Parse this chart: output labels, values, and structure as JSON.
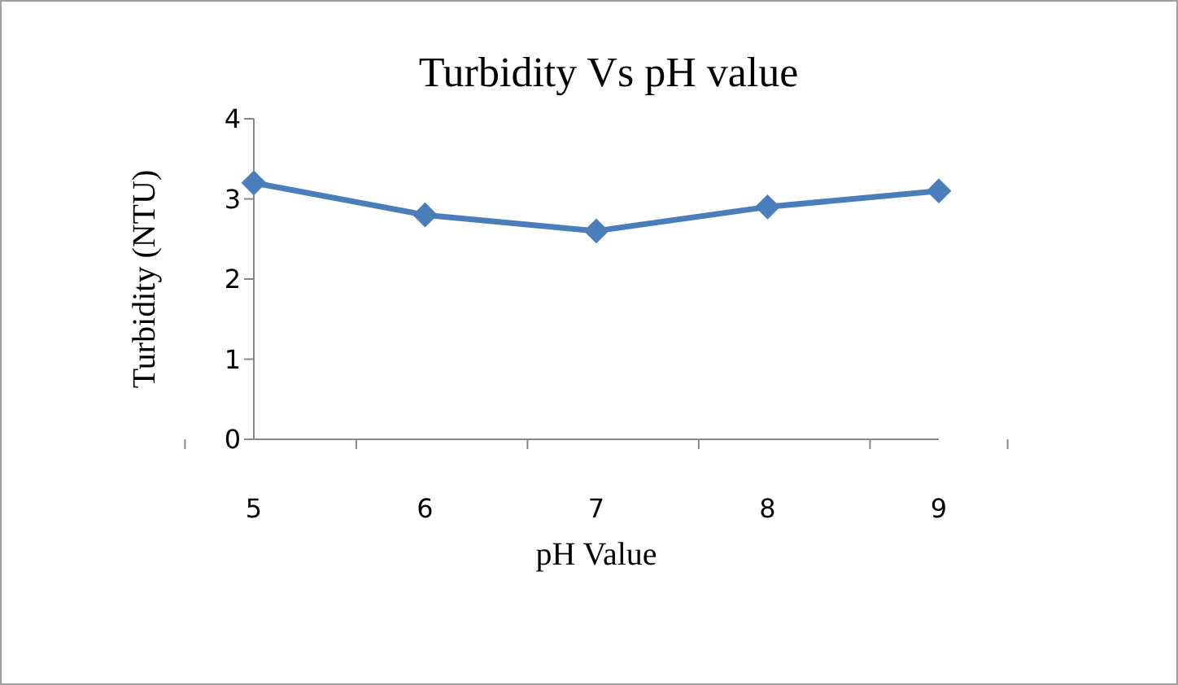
{
  "chart_data": {
    "type": "line",
    "title": "Turbidity Vs  pH value",
    "xlabel": "pH Value",
    "ylabel": "Turbidity (NTU)",
    "categories": [
      "5",
      "6",
      "7",
      "8",
      "9"
    ],
    "series": [
      {
        "color": "#4a7ebb",
        "values": [
          3.2,
          2.8,
          2.6,
          2.9,
          3.1
        ]
      }
    ],
    "ylim": [
      0,
      4
    ],
    "yticks": [
      0,
      1,
      2,
      3,
      4
    ],
    "grid": false,
    "legend": false,
    "marker": "diamond",
    "line_style": "solid"
  }
}
